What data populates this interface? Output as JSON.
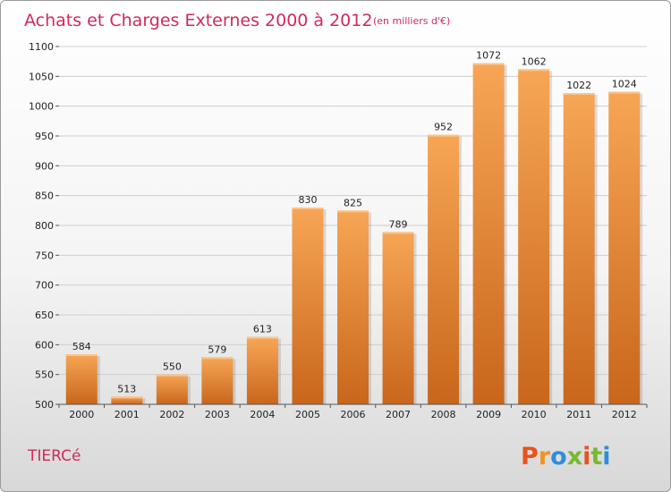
{
  "header": {
    "title": "Achats et Charges Externes 2000 à 2012",
    "subtitle": "(en milliers d'€)"
  },
  "footer": {
    "place": "TIERCé",
    "logo": "Proxiti"
  },
  "colors": {
    "accent": "#d02a5a",
    "bar_top": "#f7a656",
    "bar_bottom": "#c8661c",
    "grid": "#cfcfcf",
    "logo_letters": [
      "#e8531f",
      "#f29222",
      "#2e8fd8",
      "#79b830",
      "#e8531f",
      "#79b830",
      "#2e8fd8"
    ]
  },
  "chart_data": {
    "type": "bar",
    "title": "Achats et Charges Externes 2000 à 2012",
    "subtitle": "(en milliers d'€)",
    "categories": [
      "2000",
      "2001",
      "2002",
      "2003",
      "2004",
      "2005",
      "2006",
      "2007",
      "2008",
      "2009",
      "2010",
      "2011",
      "2012"
    ],
    "values": [
      584,
      513,
      550,
      579,
      613,
      830,
      825,
      789,
      952,
      1072,
      1062,
      1022,
      1024
    ],
    "xlabel": "",
    "ylabel": "",
    "ylim": [
      500,
      1100
    ],
    "yticks": [
      500,
      550,
      600,
      650,
      700,
      750,
      800,
      850,
      900,
      950,
      1000,
      1050,
      1100
    ],
    "grid": true,
    "legend": "none"
  }
}
